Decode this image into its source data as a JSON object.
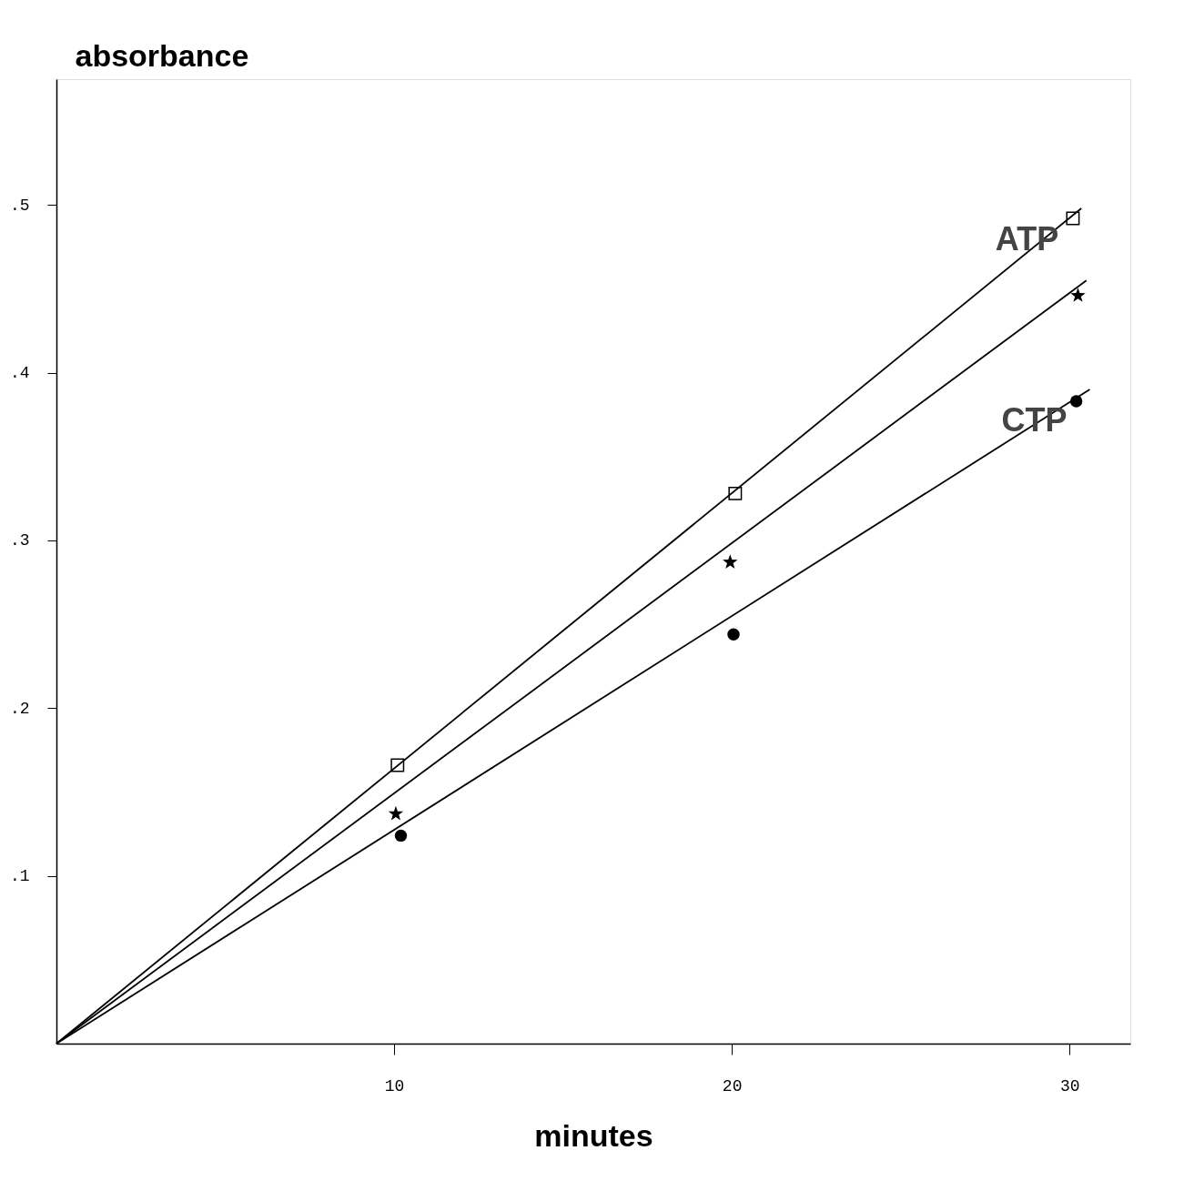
{
  "chart_data": {
    "type": "scatter",
    "xlabel": "minutes",
    "ylabel": "absorbance",
    "xlim": [
      0,
      31.8
    ],
    "ylim": [
      0,
      0.575
    ],
    "xticks": [
      10,
      20,
      30
    ],
    "yticks": [
      {
        "value": 0.1,
        "label": ".1"
      },
      {
        "value": 0.2,
        "label": ".2"
      },
      {
        "value": 0.3,
        "label": ".3"
      },
      {
        "value": 0.4,
        "label": ".4"
      },
      {
        "value": 0.5,
        "label": ".5"
      }
    ],
    "grid": false,
    "series": [
      {
        "marker": "square",
        "color": "#000000",
        "x": [
          10.1,
          20.1,
          30.1
        ],
        "values": [
          0.166,
          0.328,
          0.492
        ]
      },
      {
        "marker": "star",
        "color": "#000000",
        "x": [
          10.05,
          19.95,
          30.25
        ],
        "values": [
          0.137,
          0.287,
          0.446
        ]
      },
      {
        "marker": "circle",
        "color": "#000000",
        "x": [
          10.2,
          20.05,
          30.2
        ],
        "values": [
          0.124,
          0.244,
          0.383
        ]
      },
      {
        "type": "line",
        "name": "ATP",
        "line_style": "solid",
        "color": "#000000",
        "x": [
          0,
          30.35
        ],
        "values": [
          0,
          0.498
        ]
      },
      {
        "type": "line",
        "line_style": "solid",
        "color": "#000000",
        "x": [
          0,
          30.5
        ],
        "values": [
          0,
          0.455
        ]
      },
      {
        "type": "line",
        "name": "CTP",
        "line_style": "solid",
        "color": "#000000",
        "x": [
          0,
          30.6
        ],
        "values": [
          0,
          0.39
        ]
      }
    ]
  }
}
